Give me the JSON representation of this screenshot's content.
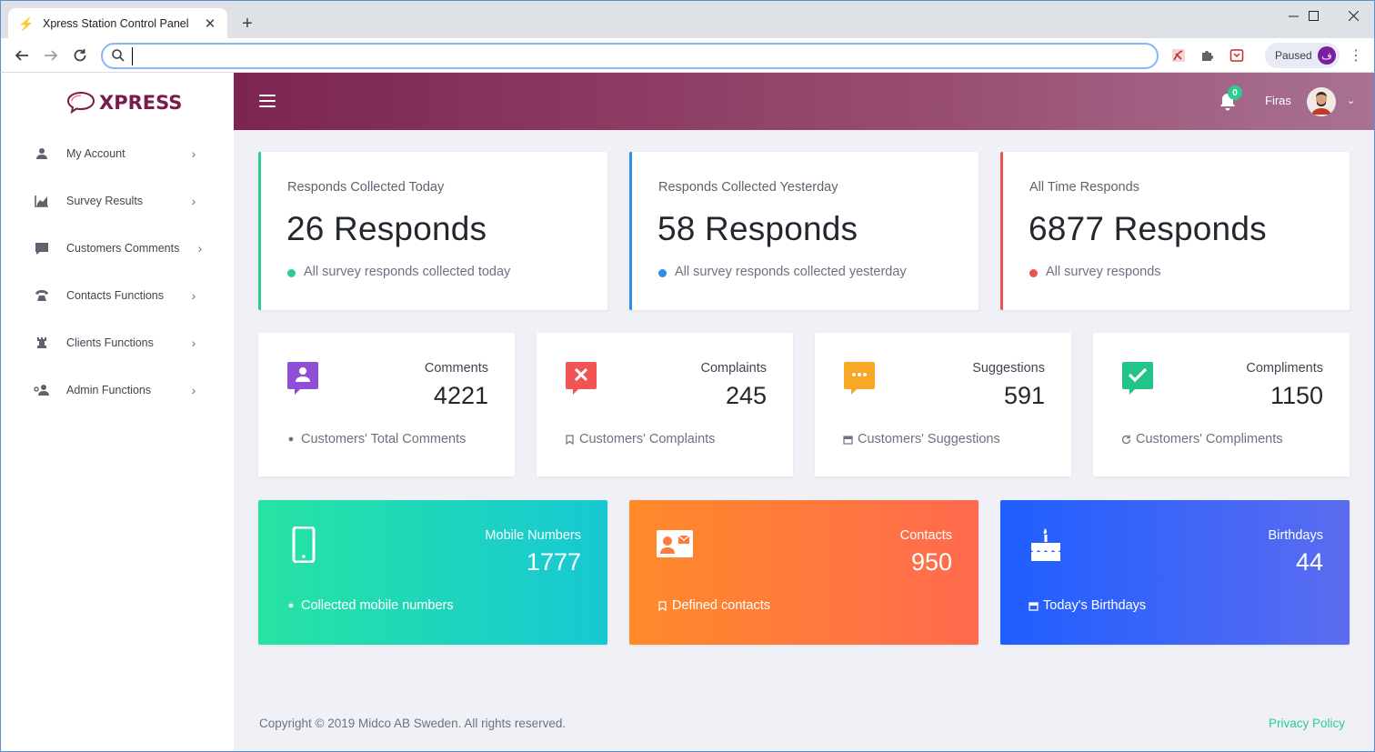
{
  "browser": {
    "tab_title": "Xpress Station Control Panel",
    "new_tab_symbol": "+",
    "address_value": "",
    "profile_status": "Paused",
    "profile_initial": "ف",
    "window_controls": [
      "minimize",
      "maximize",
      "close"
    ]
  },
  "brand": {
    "name": "XPRESS",
    "color": "#7a1b48"
  },
  "sidebar": {
    "items": [
      {
        "label": "My Account",
        "icon": "user-icon"
      },
      {
        "label": "Survey Results",
        "icon": "chart-icon"
      },
      {
        "label": "Customers Comments",
        "icon": "comment-icon"
      },
      {
        "label": "Contacts Functions",
        "icon": "phone-icon"
      },
      {
        "label": "Clients Functions",
        "icon": "chess-rook-icon"
      },
      {
        "label": "Admin Functions",
        "icon": "users-cog-icon"
      }
    ]
  },
  "topbar": {
    "notifications_count": "0",
    "username": "Firas"
  },
  "summary_cards": [
    {
      "label": "Responds Collected Today",
      "value": "26 Responds",
      "note": "All survey responds collected today",
      "accent": "#2ecc8f"
    },
    {
      "label": "Responds Collected Yesterday",
      "value": "58 Responds",
      "note": "All survey responds collected yesterday",
      "accent": "#2f8fe6"
    },
    {
      "label": "All Time Responds",
      "value": "6877 Responds",
      "note": "All survey responds",
      "accent": "#ef5350"
    }
  ],
  "metric_cards": [
    {
      "label": "Comments",
      "value": "4221",
      "note": "Customers' Total Comments",
      "icon": "comment-user-icon",
      "color": "#8e4fd6"
    },
    {
      "label": "Complaints",
      "value": "245",
      "note": "Customers' Complaints",
      "icon": "comment-x-icon",
      "color": "#f05454"
    },
    {
      "label": "Suggestions",
      "value": "591",
      "note": "Customers' Suggestions",
      "icon": "comment-dots-icon",
      "color": "#f9a825"
    },
    {
      "label": "Compliments",
      "value": "1150",
      "note": "Customers' Compliments",
      "icon": "comment-check-icon",
      "color": "#22c48a"
    }
  ],
  "highlight_cards": [
    {
      "label": "Mobile Numbers",
      "value": "1777",
      "note": "Collected mobile numbers",
      "icon": "mobile-icon"
    },
    {
      "label": "Contacts",
      "value": "950",
      "note": "Defined contacts",
      "icon": "contact-card-icon"
    },
    {
      "label": "Birthdays",
      "value": "44",
      "note": "Today's Birthdays",
      "icon": "birthday-cake-icon"
    }
  ],
  "footer": {
    "copyright": "Copyright © 2019 Midco AB Sweden. All rights reserved.",
    "privacy": "Privacy Policy"
  }
}
